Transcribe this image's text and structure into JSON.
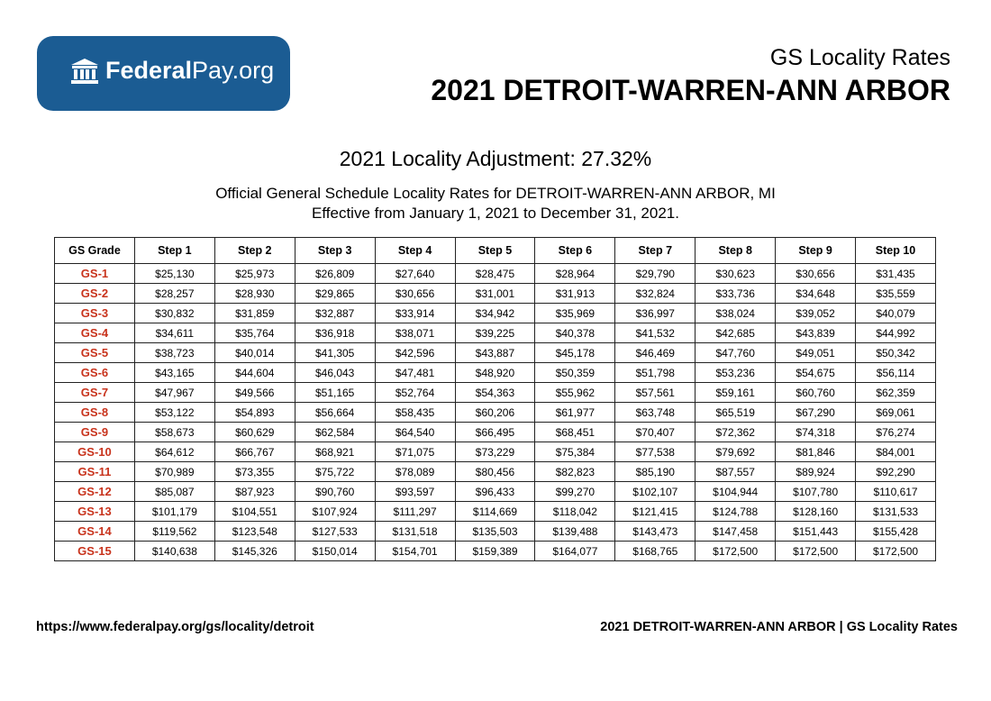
{
  "logo": {
    "bold": "Federal",
    "light": "Pay.org"
  },
  "header": {
    "subtitle": "GS Locality Rates",
    "title": "2021 DETROIT-WARREN-ANN ARBOR"
  },
  "adjustment": "2021 Locality Adjustment: 27.32%",
  "description": [
    "Official General Schedule Locality Rates for DETROIT-WARREN-ANN ARBOR, MI",
    "Effective from January 1, 2021 to December 31, 2021."
  ],
  "table": {
    "columns": [
      "GS Grade",
      "Step 1",
      "Step 2",
      "Step 3",
      "Step 4",
      "Step 5",
      "Step 6",
      "Step 7",
      "Step 8",
      "Step 9",
      "Step 10"
    ],
    "rows": [
      [
        "GS-1",
        "$25,130",
        "$25,973",
        "$26,809",
        "$27,640",
        "$28,475",
        "$28,964",
        "$29,790",
        "$30,623",
        "$30,656",
        "$31,435"
      ],
      [
        "GS-2",
        "$28,257",
        "$28,930",
        "$29,865",
        "$30,656",
        "$31,001",
        "$31,913",
        "$32,824",
        "$33,736",
        "$34,648",
        "$35,559"
      ],
      [
        "GS-3",
        "$30,832",
        "$31,859",
        "$32,887",
        "$33,914",
        "$34,942",
        "$35,969",
        "$36,997",
        "$38,024",
        "$39,052",
        "$40,079"
      ],
      [
        "GS-4",
        "$34,611",
        "$35,764",
        "$36,918",
        "$38,071",
        "$39,225",
        "$40,378",
        "$41,532",
        "$42,685",
        "$43,839",
        "$44,992"
      ],
      [
        "GS-5",
        "$38,723",
        "$40,014",
        "$41,305",
        "$42,596",
        "$43,887",
        "$45,178",
        "$46,469",
        "$47,760",
        "$49,051",
        "$50,342"
      ],
      [
        "GS-6",
        "$43,165",
        "$44,604",
        "$46,043",
        "$47,481",
        "$48,920",
        "$50,359",
        "$51,798",
        "$53,236",
        "$54,675",
        "$56,114"
      ],
      [
        "GS-7",
        "$47,967",
        "$49,566",
        "$51,165",
        "$52,764",
        "$54,363",
        "$55,962",
        "$57,561",
        "$59,161",
        "$60,760",
        "$62,359"
      ],
      [
        "GS-8",
        "$53,122",
        "$54,893",
        "$56,664",
        "$58,435",
        "$60,206",
        "$61,977",
        "$63,748",
        "$65,519",
        "$67,290",
        "$69,061"
      ],
      [
        "GS-9",
        "$58,673",
        "$60,629",
        "$62,584",
        "$64,540",
        "$66,495",
        "$68,451",
        "$70,407",
        "$72,362",
        "$74,318",
        "$76,274"
      ],
      [
        "GS-10",
        "$64,612",
        "$66,767",
        "$68,921",
        "$71,075",
        "$73,229",
        "$75,384",
        "$77,538",
        "$79,692",
        "$81,846",
        "$84,001"
      ],
      [
        "GS-11",
        "$70,989",
        "$73,355",
        "$75,722",
        "$78,089",
        "$80,456",
        "$82,823",
        "$85,190",
        "$87,557",
        "$89,924",
        "$92,290"
      ],
      [
        "GS-12",
        "$85,087",
        "$87,923",
        "$90,760",
        "$93,597",
        "$96,433",
        "$99,270",
        "$102,107",
        "$104,944",
        "$107,780",
        "$110,617"
      ],
      [
        "GS-13",
        "$101,179",
        "$104,551",
        "$107,924",
        "$111,297",
        "$114,669",
        "$118,042",
        "$121,415",
        "$124,788",
        "$128,160",
        "$131,533"
      ],
      [
        "GS-14",
        "$119,562",
        "$123,548",
        "$127,533",
        "$131,518",
        "$135,503",
        "$139,488",
        "$143,473",
        "$147,458",
        "$151,443",
        "$155,428"
      ],
      [
        "GS-15",
        "$140,638",
        "$145,326",
        "$150,014",
        "$154,701",
        "$159,389",
        "$164,077",
        "$168,765",
        "$172,500",
        "$172,500",
        "$172,500"
      ]
    ]
  },
  "footer": {
    "url": "https://www.federalpay.org/gs/locality/detroit",
    "right": "2021 DETROIT-WARREN-ANN ARBOR | GS Locality Rates"
  }
}
